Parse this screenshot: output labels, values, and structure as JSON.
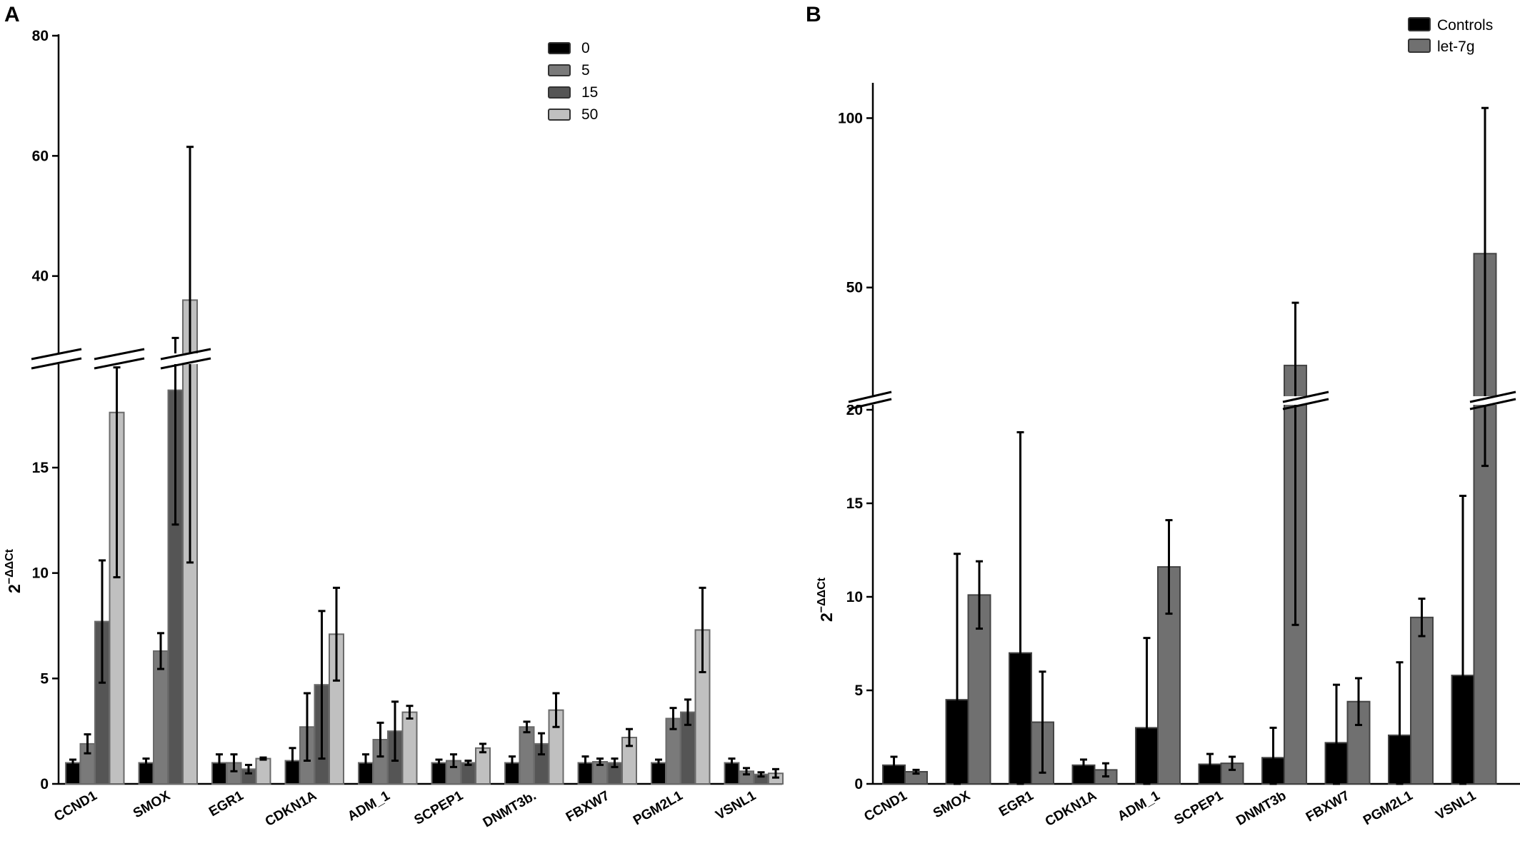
{
  "chart_data": [
    {
      "panel": "A",
      "type": "bar",
      "ylabel": "2⁻ΔΔCt",
      "ylim": [
        0,
        80
      ],
      "axis_break": true,
      "lower_yticks": [
        "0",
        "5",
        "10",
        "15"
      ],
      "upper_yticks": [
        "40",
        "60",
        "80"
      ],
      "categories": [
        "CCND1",
        "SMOX",
        "EGR1",
        "CDKN1A",
        "ADM_1",
        "SCPEP1",
        "DNMT3b.",
        "FBXW7",
        "PGM2L1",
        "VSNL1"
      ],
      "legend_position": "top-right",
      "series": [
        {
          "name": "0",
          "color": "#000000",
          "values": [
            1.0,
            1.0,
            1.0,
            1.1,
            1.0,
            1.0,
            1.0,
            1.0,
            1.0,
            1.0
          ],
          "errors": [
            0.15,
            0.2,
            0.4,
            0.6,
            0.4,
            0.15,
            0.3,
            0.3,
            0.15,
            0.2
          ]
        },
        {
          "name": "5",
          "color": "#7a7a7a",
          "values": [
            1.9,
            6.3,
            1.0,
            2.7,
            2.1,
            1.1,
            2.7,
            1.05,
            3.1,
            0.6
          ],
          "errors": [
            0.45,
            0.85,
            0.4,
            1.6,
            0.8,
            0.3,
            0.25,
            0.15,
            0.5,
            0.15
          ]
        },
        {
          "name": "15",
          "color": "#555555",
          "values": [
            7.7,
            21.0,
            0.7,
            4.7,
            2.5,
            1.0,
            1.9,
            1.0,
            3.4,
            0.45
          ],
          "errors": [
            2.9,
            8.7,
            0.2,
            3.5,
            1.4,
            0.1,
            0.5,
            0.2,
            0.6,
            0.1
          ]
        },
        {
          "name": "50",
          "color": "#c0c0c0",
          "values": [
            17.3,
            36.0,
            1.2,
            7.1,
            3.4,
            1.7,
            3.5,
            2.2,
            7.3,
            0.5
          ],
          "errors": [
            7.5,
            25.5,
            0.05,
            2.2,
            0.3,
            0.2,
            0.8,
            0.4,
            2.0,
            0.2
          ]
        }
      ]
    },
    {
      "panel": "B",
      "type": "bar",
      "ylabel": "2⁻ΔΔCt",
      "ylim": [
        0,
        110
      ],
      "axis_break": true,
      "lower_yticks": [
        "0",
        "5",
        "10",
        "15",
        "20"
      ],
      "upper_yticks": [
        "50",
        "100"
      ],
      "categories": [
        "CCND1",
        "SMOX",
        "EGR1",
        "CDKN1A",
        "ADM_1",
        "SCPEP1",
        "DNMT3b",
        "FBXW7",
        "PGM2L1",
        "VSNL1"
      ],
      "legend_position": "top-right",
      "series": [
        {
          "name": "Controls",
          "color": "#000000",
          "values": [
            1.0,
            4.5,
            7.0,
            1.0,
            3.0,
            1.05,
            1.4,
            2.2,
            2.6,
            5.8
          ],
          "errors": [
            0.45,
            7.8,
            11.8,
            0.3,
            4.8,
            0.55,
            1.6,
            3.1,
            3.9,
            9.6
          ]
        },
        {
          "name": "let-7g",
          "color": "#707070",
          "values": [
            0.65,
            10.1,
            3.3,
            0.75,
            11.6,
            1.1,
            27.0,
            4.4,
            8.9,
            60.0
          ],
          "errors": [
            0.1,
            1.8,
            2.7,
            0.35,
            2.5,
            0.35,
            18.5,
            1.25,
            1.0,
            43.0
          ]
        }
      ]
    }
  ]
}
